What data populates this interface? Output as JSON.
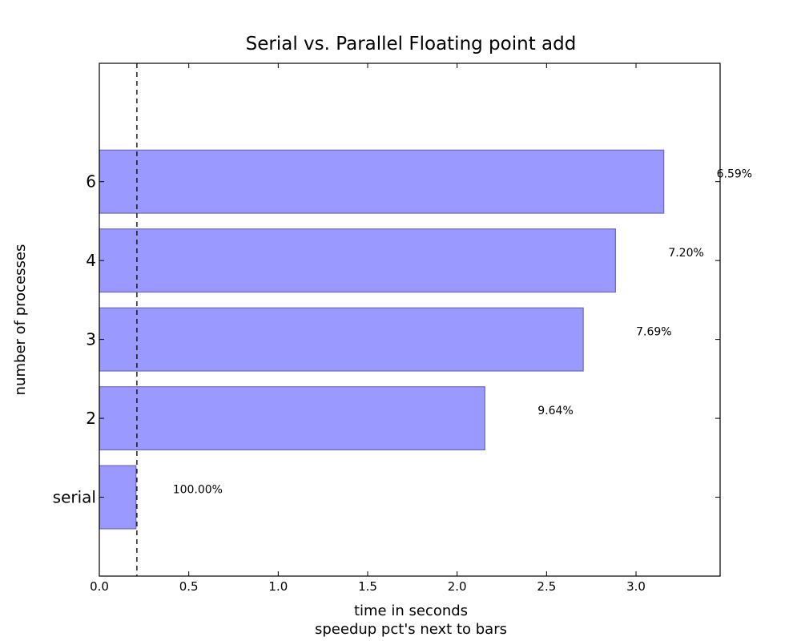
{
  "chart_data": {
    "type": "bar",
    "orientation": "horizontal",
    "title": "Serial vs. Parallel Floating point add",
    "xlabel": "time in seconds",
    "xlabel_sub": "speedup pct's next to bars",
    "ylabel": "number of processes",
    "categories": [
      "serial",
      "2",
      "3",
      "4",
      "6"
    ],
    "values": [
      0.205,
      2.155,
      2.705,
      2.885,
      3.155
    ],
    "annotations": [
      "100.00%",
      "9.64%",
      "7.69%",
      "7.20%",
      "6.59%"
    ],
    "annotation_x": [
      0.55,
      2.55,
      3.1,
      3.28,
      3.55
    ],
    "reference_line_x": 0.21,
    "xlim": [
      0,
      3.47
    ],
    "xticks": [
      "0.0",
      "0.5",
      "1.0",
      "1.5",
      "2.0",
      "2.5",
      "3.0"
    ],
    "xtick_values": [
      0,
      0.5,
      1.0,
      1.5,
      2.0,
      2.5,
      3.0
    ],
    "bar_color": "#9999ff",
    "bar_edge_color": "#6b6bb3",
    "grid": false
  }
}
